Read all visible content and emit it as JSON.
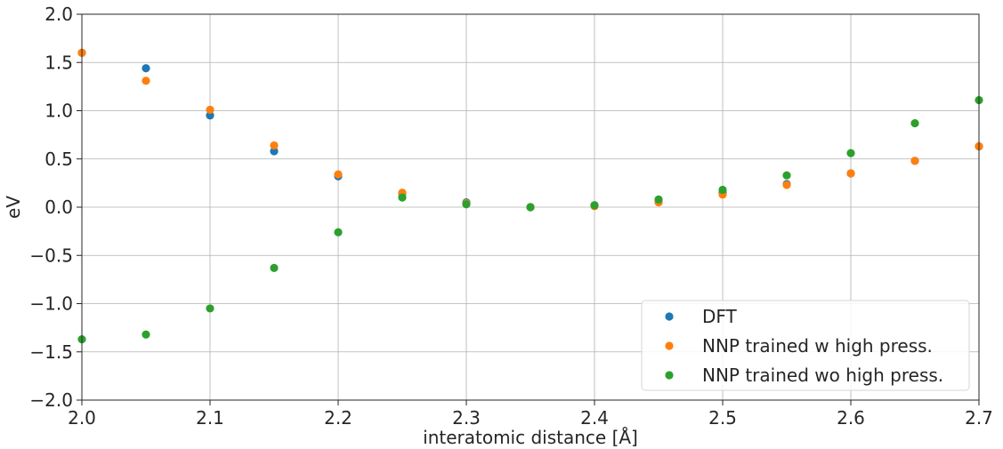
{
  "chart_data": {
    "type": "scatter",
    "title": "",
    "xlabel": "interatomic distance [Å]",
    "ylabel": "eV",
    "xlim": [
      2.0,
      2.7
    ],
    "ylim": [
      -2.0,
      2.0
    ],
    "xticks": [
      2.0,
      2.1,
      2.2,
      2.3,
      2.4,
      2.5,
      2.6,
      2.7
    ],
    "xtick_labels": [
      "2.0",
      "2.1",
      "2.2",
      "2.3",
      "2.4",
      "2.5",
      "2.6",
      "2.7"
    ],
    "yticks": [
      2.0,
      1.5,
      1.0,
      0.5,
      0.0,
      -0.5,
      -1.0,
      -1.5,
      -2.0
    ],
    "ytick_labels": [
      "2.0",
      "1.5",
      "1.0",
      "0.5",
      "0.0",
      "−0.5",
      "−1.0",
      "−1.5",
      "−2.0"
    ],
    "grid": true,
    "legend_position": "bottom-right",
    "series": [
      {
        "name": "DFT",
        "color": "#1f77b4",
        "x": [
          2.0,
          2.05,
          2.1,
          2.15,
          2.2,
          2.25,
          2.3,
          2.35,
          2.4,
          2.45,
          2.5,
          2.55,
          2.6,
          2.65,
          2.7
        ],
        "y": [
          1.6,
          1.44,
          0.95,
          0.58,
          0.32,
          0.14,
          0.05,
          0.0,
          0.02,
          0.06,
          0.15,
          0.24,
          0.35,
          0.48,
          0.63
        ]
      },
      {
        "name": "NNP trained w high press.",
        "color": "#ff7f0e",
        "x": [
          2.0,
          2.05,
          2.1,
          2.15,
          2.2,
          2.25,
          2.3,
          2.35,
          2.4,
          2.45,
          2.5,
          2.55,
          2.6,
          2.65,
          2.7
        ],
        "y": [
          1.6,
          1.31,
          1.01,
          0.64,
          0.34,
          0.15,
          0.04,
          0.0,
          0.01,
          0.05,
          0.13,
          0.23,
          0.35,
          0.48,
          0.63
        ]
      },
      {
        "name": "NNP trained wo high press.",
        "color": "#2ca02c",
        "x": [
          2.0,
          2.05,
          2.1,
          2.15,
          2.2,
          2.25,
          2.3,
          2.35,
          2.4,
          2.45,
          2.5,
          2.55,
          2.6,
          2.65,
          2.7
        ],
        "y": [
          -1.37,
          -1.32,
          -1.05,
          -0.63,
          -0.26,
          0.1,
          0.03,
          0.0,
          0.02,
          0.08,
          0.18,
          0.33,
          0.56,
          0.87,
          1.11
        ]
      }
    ]
  }
}
